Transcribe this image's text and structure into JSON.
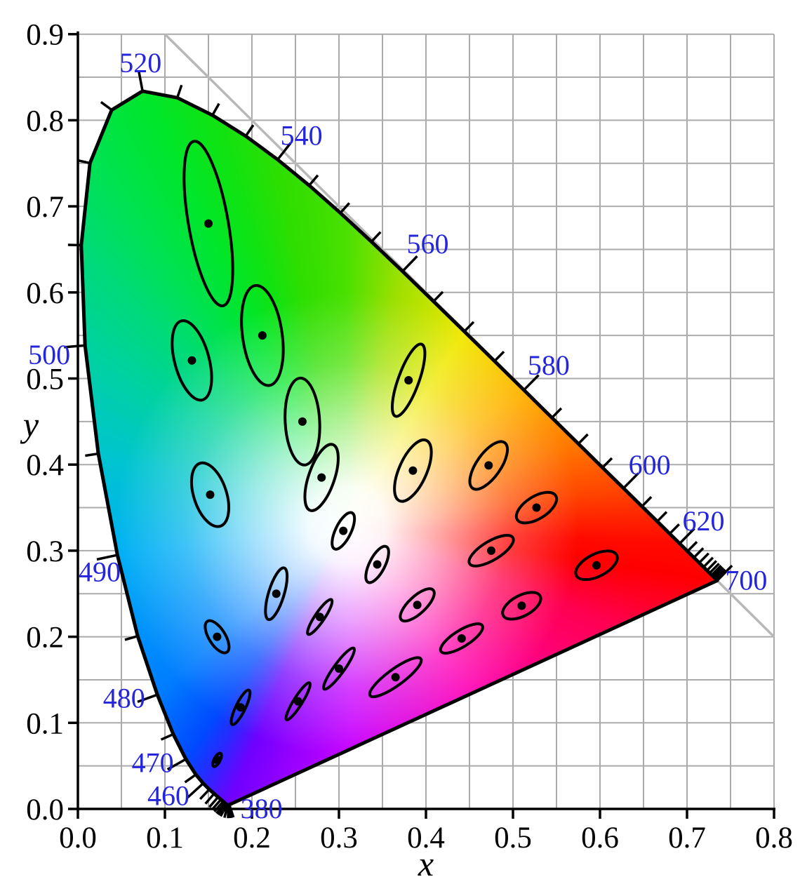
{
  "chart_data": {
    "type": "scatter",
    "subtype": "cie-1931-xy-chromaticity-diagram-with-macadam-ellipses",
    "title": "",
    "xlabel": "x",
    "ylabel": "y",
    "xlim": [
      0.0,
      0.8
    ],
    "ylim": [
      0.0,
      0.9
    ],
    "x_ticks": [
      "0.0",
      "0.1",
      "0.2",
      "0.3",
      "0.4",
      "0.5",
      "0.6",
      "0.7",
      "0.8"
    ],
    "y_ticks": [
      "0.0",
      "0.1",
      "0.2",
      "0.3",
      "0.4",
      "0.5",
      "0.6",
      "0.7",
      "0.8",
      "0.9"
    ],
    "grid_step": 0.05,
    "grid_on": true,
    "diagonal_line": {
      "from": [
        0.1,
        0.9
      ],
      "to": [
        0.8,
        0.2
      ]
    },
    "colors": {
      "wavelength_label": "#2525dd",
      "grid": "#ababab",
      "diagonal": "#b8b8b8",
      "outline": "#000000",
      "axis": "#000000",
      "background": "#ffffff"
    },
    "white_point": [
      0.3097,
      0.3302
    ],
    "fill_conic_stops": [
      [
        0,
        "#4ce000"
      ],
      [
        12.3,
        "#9fe000"
      ],
      [
        31.2,
        "#f0e800"
      ],
      [
        52.6,
        "#ffb400"
      ],
      [
        70.6,
        "#ff7800"
      ],
      [
        82.5,
        "#ff4600"
      ],
      [
        89.4,
        "#ff2000"
      ],
      [
        93.3,
        "#ff0a00"
      ],
      [
        98.5,
        "#ff0000"
      ],
      [
        110.2,
        "#ff0050"
      ],
      [
        143.2,
        "#ff00b4"
      ],
      [
        178.9,
        "#c800ff"
      ],
      [
        195,
        "#9100ff"
      ],
      [
        203,
        "#7000ff"
      ],
      [
        209.1,
        "#2929ff"
      ],
      [
        214.5,
        "#0049ff"
      ],
      [
        228.2,
        "#007dff"
      ],
      [
        262.5,
        "#00aff5"
      ],
      [
        285.9,
        "#00c4cf"
      ],
      [
        304.4,
        "#00d2a0"
      ],
      [
        316.4,
        "#00da78"
      ],
      [
        324.6,
        "#00e155"
      ],
      [
        334.7,
        "#00e62b"
      ],
      [
        341.8,
        "#10e312"
      ],
      [
        349.2,
        "#2ede00"
      ],
      [
        358.7,
        "#46e000"
      ],
      [
        360,
        "#4ce000"
      ]
    ],
    "spectral_locus": [
      [
        380,
        0.1741,
        0.005
      ],
      [
        385,
        0.174,
        0.005
      ],
      [
        390,
        0.1738,
        0.0049
      ],
      [
        395,
        0.1736,
        0.0049
      ],
      [
        400,
        0.1733,
        0.0048
      ],
      [
        405,
        0.173,
        0.0048
      ],
      [
        410,
        0.1726,
        0.0048
      ],
      [
        415,
        0.1721,
        0.0048
      ],
      [
        420,
        0.1714,
        0.0051
      ],
      [
        425,
        0.1703,
        0.0058
      ],
      [
        430,
        0.1689,
        0.0069
      ],
      [
        435,
        0.1669,
        0.0086
      ],
      [
        440,
        0.1644,
        0.0109
      ],
      [
        445,
        0.1611,
        0.0138
      ],
      [
        450,
        0.1566,
        0.0177
      ],
      [
        455,
        0.151,
        0.0227
      ],
      [
        460,
        0.144,
        0.0297
      ],
      [
        465,
        0.1355,
        0.0399
      ],
      [
        470,
        0.1241,
        0.0578
      ],
      [
        475,
        0.1096,
        0.0868
      ],
      [
        480,
        0.0913,
        0.1327
      ],
      [
        485,
        0.0687,
        0.2007
      ],
      [
        490,
        0.0454,
        0.295
      ],
      [
        495,
        0.0235,
        0.4127
      ],
      [
        500,
        0.0082,
        0.5384
      ],
      [
        505,
        0.0039,
        0.6548
      ],
      [
        510,
        0.0139,
        0.7502
      ],
      [
        515,
        0.0389,
        0.812
      ],
      [
        520,
        0.0743,
        0.8338
      ],
      [
        525,
        0.1142,
        0.8262
      ],
      [
        530,
        0.1547,
        0.8059
      ],
      [
        535,
        0.1929,
        0.7816
      ],
      [
        540,
        0.2296,
        0.7543
      ],
      [
        545,
        0.2658,
        0.7243
      ],
      [
        550,
        0.3016,
        0.6923
      ],
      [
        555,
        0.3373,
        0.6589
      ],
      [
        560,
        0.3731,
        0.6245
      ],
      [
        565,
        0.4087,
        0.5896
      ],
      [
        570,
        0.4441,
        0.5547
      ],
      [
        575,
        0.4788,
        0.5202
      ],
      [
        580,
        0.5125,
        0.4866
      ],
      [
        585,
        0.5448,
        0.4544
      ],
      [
        590,
        0.5752,
        0.4242
      ],
      [
        595,
        0.6029,
        0.3965
      ],
      [
        600,
        0.627,
        0.3725
      ],
      [
        605,
        0.6482,
        0.3514
      ],
      [
        610,
        0.6658,
        0.334
      ],
      [
        615,
        0.6801,
        0.3197
      ],
      [
        620,
        0.6915,
        0.3083
      ],
      [
        625,
        0.7006,
        0.2993
      ],
      [
        630,
        0.7079,
        0.292
      ],
      [
        635,
        0.714,
        0.2859
      ],
      [
        640,
        0.719,
        0.2809
      ],
      [
        645,
        0.723,
        0.277
      ],
      [
        650,
        0.726,
        0.274
      ],
      [
        655,
        0.7283,
        0.2717
      ],
      [
        660,
        0.73,
        0.27
      ],
      [
        665,
        0.7311,
        0.2689
      ],
      [
        670,
        0.732,
        0.268
      ],
      [
        675,
        0.7327,
        0.2673
      ],
      [
        680,
        0.7334,
        0.2666
      ],
      [
        685,
        0.734,
        0.266
      ],
      [
        690,
        0.7344,
        0.2656
      ],
      [
        695,
        0.7346,
        0.2654
      ],
      [
        700,
        0.7347,
        0.2653
      ]
    ],
    "purple_line_closes_locus": true,
    "labeled_tick_nm": [
      460,
      470,
      480,
      490,
      500,
      520,
      540,
      560,
      580,
      600,
      620,
      700
    ],
    "wavelength_labels": [
      {
        "text": "380",
        "x": 0.211,
        "y": 0.001
      },
      {
        "text": "460",
        "x": 0.104,
        "y": 0.016
      },
      {
        "text": "470",
        "x": 0.086,
        "y": 0.054
      },
      {
        "text": "480",
        "x": 0.053,
        "y": 0.129
      },
      {
        "text": "490",
        "x": 0.025,
        "y": 0.276
      },
      {
        "text": "500",
        "x": -0.033,
        "y": 0.528
      },
      {
        "text": "520",
        "x": 0.072,
        "y": 0.867
      },
      {
        "text": "540",
        "x": 0.257,
        "y": 0.783
      },
      {
        "text": "560",
        "x": 0.402,
        "y": 0.657
      },
      {
        "text": "580",
        "x": 0.541,
        "y": 0.516
      },
      {
        "text": "600",
        "x": 0.657,
        "y": 0.4
      },
      {
        "text": "620",
        "x": 0.719,
        "y": 0.335
      },
      {
        "text": "700",
        "x": 0.768,
        "y": 0.266
      }
    ],
    "macadam_ellipses": {
      "magnification": 10,
      "axes_unit": "0.001 xy",
      "ellipses": [
        {
          "x": 0.16,
          "y": 0.057,
          "a": 0.85,
          "b": 0.35,
          "angle": 62
        },
        {
          "x": 0.187,
          "y": 0.118,
          "a": 2.2,
          "b": 0.55,
          "angle": 64
        },
        {
          "x": 0.253,
          "y": 0.125,
          "a": 2.5,
          "b": 0.5,
          "angle": 58
        },
        {
          "x": 0.15,
          "y": 0.68,
          "a": 9.6,
          "b": 2.3,
          "angle": 100
        },
        {
          "x": 0.131,
          "y": 0.521,
          "a": 4.7,
          "b": 2.0,
          "angle": 105
        },
        {
          "x": 0.212,
          "y": 0.55,
          "a": 5.8,
          "b": 2.3,
          "angle": 98
        },
        {
          "x": 0.258,
          "y": 0.45,
          "a": 5.0,
          "b": 2.0,
          "angle": 93
        },
        {
          "x": 0.152,
          "y": 0.365,
          "a": 3.8,
          "b": 1.9,
          "angle": 108
        },
        {
          "x": 0.28,
          "y": 0.385,
          "a": 4.0,
          "b": 1.5,
          "angle": 71
        },
        {
          "x": 0.38,
          "y": 0.498,
          "a": 4.4,
          "b": 1.2,
          "angle": 70
        },
        {
          "x": 0.16,
          "y": 0.2,
          "a": 2.1,
          "b": 0.95,
          "angle": 122
        },
        {
          "x": 0.228,
          "y": 0.25,
          "a": 3.1,
          "b": 0.9,
          "angle": 73
        },
        {
          "x": 0.305,
          "y": 0.323,
          "a": 2.3,
          "b": 0.9,
          "angle": 64
        },
        {
          "x": 0.385,
          "y": 0.393,
          "a": 3.8,
          "b": 1.6,
          "angle": 66
        },
        {
          "x": 0.472,
          "y": 0.399,
          "a": 3.2,
          "b": 1.4,
          "angle": 55
        },
        {
          "x": 0.527,
          "y": 0.35,
          "a": 2.6,
          "b": 1.3,
          "angle": 32
        },
        {
          "x": 0.475,
          "y": 0.3,
          "a": 2.9,
          "b": 1.1,
          "angle": 31
        },
        {
          "x": 0.51,
          "y": 0.236,
          "a": 2.4,
          "b": 1.2,
          "angle": 28
        },
        {
          "x": 0.596,
          "y": 0.283,
          "a": 2.6,
          "b": 1.3,
          "angle": 27
        },
        {
          "x": 0.344,
          "y": 0.284,
          "a": 2.3,
          "b": 0.9,
          "angle": 63
        },
        {
          "x": 0.39,
          "y": 0.237,
          "a": 2.5,
          "b": 1.0,
          "angle": 43
        },
        {
          "x": 0.441,
          "y": 0.198,
          "a": 2.8,
          "b": 0.95,
          "angle": 32
        },
        {
          "x": 0.278,
          "y": 0.223,
          "a": 2.4,
          "b": 0.55,
          "angle": 56
        },
        {
          "x": 0.3,
          "y": 0.163,
          "a": 2.9,
          "b": 0.6,
          "angle": 54
        },
        {
          "x": 0.365,
          "y": 0.153,
          "a": 3.6,
          "b": 0.95,
          "angle": 36
        }
      ]
    }
  }
}
